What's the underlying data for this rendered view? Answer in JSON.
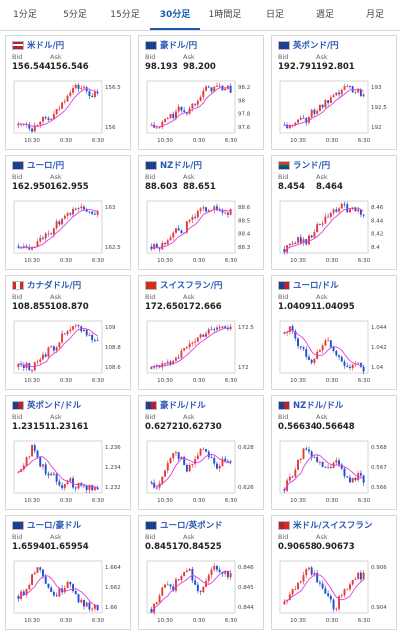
{
  "tabs": [
    {
      "label": "1分足",
      "active": false
    },
    {
      "label": "5分足",
      "active": false
    },
    {
      "label": "15分足",
      "active": false
    },
    {
      "label": "30分足",
      "active": true
    },
    {
      "label": "1時間足",
      "active": false
    },
    {
      "label": "日足",
      "active": false
    },
    {
      "label": "週足",
      "active": false
    },
    {
      "label": "月足",
      "active": false
    }
  ],
  "labels": {
    "bid": "Bid",
    "ask": "Ask"
  },
  "colors": {
    "up": "#e53935",
    "down": "#1e4fd6",
    "ma": "#e040e0",
    "tab_active": "#1a57b4"
  },
  "cards": [
    {
      "pair": "米ドル/円",
      "flag": "us-flag",
      "bid": "156.544",
      "ask": "156.546",
      "xticks": [
        "10:30",
        "0:30",
        "6:30"
      ],
      "yticks": [
        "156.5",
        "156"
      ],
      "trend": [
        156.05,
        156.1,
        156.0,
        156.15,
        156.1,
        156.2,
        156.35,
        156.55,
        156.6,
        156.58,
        156.5,
        156.48
      ]
    },
    {
      "pair": "豪ドル/円",
      "flag": "au-flag",
      "bid": "98.193",
      "ask": "98.200",
      "xticks": [
        "10:30",
        "0:30",
        "6:30"
      ],
      "yticks": [
        "98.2",
        "98",
        "97.8",
        "97.6"
      ],
      "trend": [
        97.65,
        97.6,
        97.75,
        97.8,
        97.9,
        97.85,
        98.0,
        98.15,
        98.2,
        98.22,
        98.2,
        98.18
      ]
    },
    {
      "pair": "英ポンド/円",
      "flag": "gb-flag",
      "bid": "192.791",
      "ask": "192.801",
      "xticks": [
        "10:30",
        "0:30",
        "6:30"
      ],
      "yticks": [
        "193",
        "192.5",
        "192"
      ],
      "trend": [
        192.1,
        192.0,
        192.3,
        192.2,
        192.4,
        192.5,
        192.6,
        192.7,
        192.9,
        192.95,
        192.85,
        192.8
      ]
    },
    {
      "pair": "ユーロ/円",
      "flag": "eu-flag",
      "bid": "162.950",
      "ask": "162.955",
      "xticks": [
        "10:30",
        "0:30",
        "6:30"
      ],
      "yticks": [
        "163",
        "162.5"
      ],
      "trend": [
        162.35,
        162.4,
        162.3,
        162.55,
        162.5,
        162.7,
        162.8,
        162.9,
        163.05,
        163.0,
        162.98,
        162.95
      ]
    },
    {
      "pair": "NZドル/円",
      "flag": "nz-flag",
      "bid": "88.603",
      "ask": "88.651",
      "xticks": [
        "10:30",
        "0:30",
        "6:30"
      ],
      "yticks": [
        "88.6",
        "88.5",
        "88.4",
        "88.3"
      ],
      "trend": [
        88.3,
        88.28,
        88.35,
        88.45,
        88.4,
        88.5,
        88.58,
        88.62,
        88.65,
        88.62,
        88.6,
        88.6
      ]
    },
    {
      "pair": "ランド/円",
      "flag": "za-flag",
      "bid": "8.454",
      "ask": "8.464",
      "xticks": [
        "10:30",
        "0:30",
        "6:30"
      ],
      "yticks": [
        "8.46",
        "8.44",
        "8.42",
        "8.4"
      ],
      "trend": [
        8.405,
        8.41,
        8.42,
        8.415,
        8.43,
        8.44,
        8.45,
        8.46,
        8.465,
        8.462,
        8.458,
        8.455
      ]
    },
    {
      "pair": "カナダドル/円",
      "flag": "ca-flag",
      "bid": "108.855",
      "ask": "108.870",
      "xticks": [
        "10:30",
        "0:30",
        "6:30"
      ],
      "yticks": [
        "109",
        "108.8",
        "108.6"
      ],
      "trend": [
        108.6,
        108.62,
        108.58,
        108.7,
        108.75,
        108.8,
        108.9,
        108.95,
        109.0,
        108.98,
        108.9,
        108.86
      ]
    },
    {
      "pair": "スイスフラン/円",
      "flag": "ch-flag",
      "bid": "172.650",
      "ask": "172.666",
      "xticks": [
        "10:30",
        "0:30",
        "6:30"
      ],
      "yticks": [
        "172.5",
        "172"
      ],
      "trend": [
        171.9,
        172.0,
        171.95,
        172.1,
        172.2,
        172.3,
        172.45,
        172.55,
        172.65,
        172.7,
        172.68,
        172.65
      ]
    },
    {
      "pair": "ユーロ/ドル",
      "flag": "eu-us-flag",
      "bid": "1.04091",
      "ask": "1.04095",
      "xticks": [
        "10:30",
        "0:30",
        "6:30"
      ],
      "yticks": [
        "1.044",
        "1.042",
        "1.04"
      ],
      "trend": [
        1.0435,
        1.044,
        1.0425,
        1.042,
        1.0415,
        1.0425,
        1.043,
        1.042,
        1.0415,
        1.041,
        1.0412,
        1.0409
      ]
    },
    {
      "pair": "英ポンド/ドル",
      "flag": "gb-us-flag",
      "bid": "1.23151",
      "ask": "1.23161",
      "xticks": [
        "10:30",
        "0:30",
        "6:30"
      ],
      "yticks": [
        "1.236",
        "1.234",
        "1.232"
      ],
      "trend": [
        1.2335,
        1.235,
        1.2365,
        1.2345,
        1.2335,
        1.233,
        1.232,
        1.2325,
        1.2318,
        1.232,
        1.2316,
        1.2315
      ]
    },
    {
      "pair": "豪ドル/ドル",
      "flag": "au-us-flag",
      "bid": "0.62721",
      "ask": "0.62730",
      "xticks": [
        "10:30",
        "0:30",
        "6:30"
      ],
      "yticks": [
        "0.628",
        "0.626"
      ],
      "trend": [
        0.6262,
        0.6258,
        0.627,
        0.628,
        0.6276,
        0.6268,
        0.6275,
        0.6282,
        0.6278,
        0.627,
        0.6274,
        0.6272
      ]
    },
    {
      "pair": "NZドル/ドル",
      "flag": "nz-us-flag",
      "bid": "0.56634",
      "ask": "0.56648",
      "xticks": [
        "10:30",
        "0:30",
        "6:30"
      ],
      "yticks": [
        "0.568",
        "0.567",
        "0.566"
      ],
      "trend": [
        0.5658,
        0.5665,
        0.5672,
        0.568,
        0.5675,
        0.567,
        0.5668,
        0.5673,
        0.5667,
        0.5662,
        0.5665,
        0.5663
      ]
    },
    {
      "pair": "ユーロ/豪ドル",
      "flag": "eu-au-flag",
      "bid": "1.65940",
      "ask": "1.65954",
      "xticks": [
        "10:30",
        "0:30",
        "6:30"
      ],
      "yticks": [
        "1.664",
        "1.662",
        "1.66"
      ],
      "trend": [
        1.6605,
        1.661,
        1.6625,
        1.663,
        1.6615,
        1.6605,
        1.661,
        1.662,
        1.6605,
        1.6598,
        1.6596,
        1.6594
      ]
    },
    {
      "pair": "ユーロ/英ポンド",
      "flag": "eu-gb-flag",
      "bid": "0.84517",
      "ask": "0.84525",
      "xticks": [
        "10:30",
        "0:30",
        "6:30"
      ],
      "yticks": [
        "0.846",
        "0.845",
        "0.844"
      ],
      "trend": [
        0.8438,
        0.8442,
        0.845,
        0.8446,
        0.8452,
        0.8455,
        0.8448,
        0.8445,
        0.8452,
        0.8455,
        0.8453,
        0.8452
      ]
    },
    {
      "pair": "米ドル/スイスフラン",
      "flag": "us-ch-flag",
      "bid": "0.90658",
      "ask": "0.90673",
      "xticks": [
        "10:30",
        "0:30",
        "6:30"
      ],
      "yticks": [
        "0.906",
        "0.904"
      ],
      "trend": [
        0.9048,
        0.9055,
        0.9062,
        0.9072,
        0.9068,
        0.906,
        0.9052,
        0.9045,
        0.9055,
        0.9062,
        0.9066,
        0.9066
      ]
    }
  ]
}
